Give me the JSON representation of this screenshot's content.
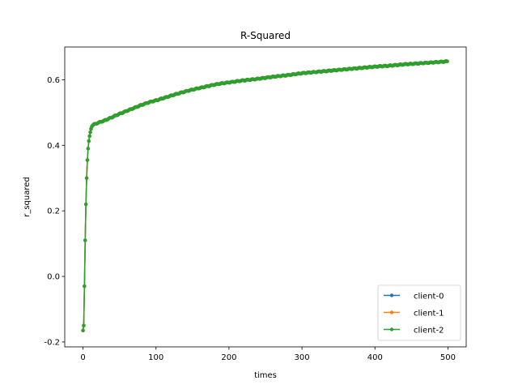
{
  "chart_data": {
    "type": "line",
    "title": "R-Squared",
    "xlabel": "times",
    "ylabel": "r_squared",
    "xlim": [
      -25,
      525
    ],
    "ylim": [
      -0.215,
      0.7
    ],
    "xticks": [
      0,
      100,
      200,
      300,
      400,
      500
    ],
    "xtick_labels": [
      "0",
      "100",
      "200",
      "300",
      "400",
      "500"
    ],
    "yticks": [
      -0.2,
      0.0,
      0.2,
      0.4,
      0.6
    ],
    "ytick_labels": [
      "-0.2",
      "0.0",
      "0.2",
      "0.4",
      "0.6"
    ],
    "grid": false,
    "legend_position": "lower-right",
    "colors": [
      "#1f77b4",
      "#ff7f0e",
      "#2ca02c"
    ],
    "x_range": [
      0,
      499
    ],
    "curve": [
      [
        0,
        -0.165
      ],
      [
        1,
        -0.15
      ],
      [
        2,
        -0.03
      ],
      [
        3,
        0.11
      ],
      [
        4,
        0.22
      ],
      [
        5,
        0.3
      ],
      [
        6,
        0.355
      ],
      [
        7,
        0.39
      ],
      [
        8,
        0.413
      ],
      [
        9,
        0.428
      ],
      [
        10,
        0.44
      ],
      [
        11,
        0.45
      ],
      [
        12,
        0.457
      ],
      [
        13,
        0.461
      ],
      [
        15,
        0.464
      ],
      [
        20,
        0.468
      ],
      [
        25,
        0.472
      ],
      [
        30,
        0.476
      ],
      [
        40,
        0.486
      ],
      [
        50,
        0.496
      ],
      [
        60,
        0.505
      ],
      [
        70,
        0.514
      ],
      [
        80,
        0.523
      ],
      [
        90,
        0.531
      ],
      [
        100,
        0.537
      ],
      [
        110,
        0.544
      ],
      [
        120,
        0.551
      ],
      [
        130,
        0.558
      ],
      [
        140,
        0.564
      ],
      [
        150,
        0.57
      ],
      [
        160,
        0.575
      ],
      [
        170,
        0.58
      ],
      [
        180,
        0.585
      ],
      [
        190,
        0.589
      ],
      [
        200,
        0.592
      ],
      [
        220,
        0.598
      ],
      [
        240,
        0.603
      ],
      [
        260,
        0.609
      ],
      [
        280,
        0.614
      ],
      [
        300,
        0.62
      ],
      [
        320,
        0.624
      ],
      [
        340,
        0.628
      ],
      [
        360,
        0.632
      ],
      [
        380,
        0.636
      ],
      [
        400,
        0.64
      ],
      [
        420,
        0.643
      ],
      [
        440,
        0.647
      ],
      [
        460,
        0.65
      ],
      [
        480,
        0.653
      ],
      [
        499,
        0.656
      ]
    ],
    "series": [
      {
        "name": "client-0",
        "color": "#1f77b4"
      },
      {
        "name": "client-1",
        "color": "#ff7f0e"
      },
      {
        "name": "client-2",
        "color": "#2ca02c"
      }
    ]
  }
}
